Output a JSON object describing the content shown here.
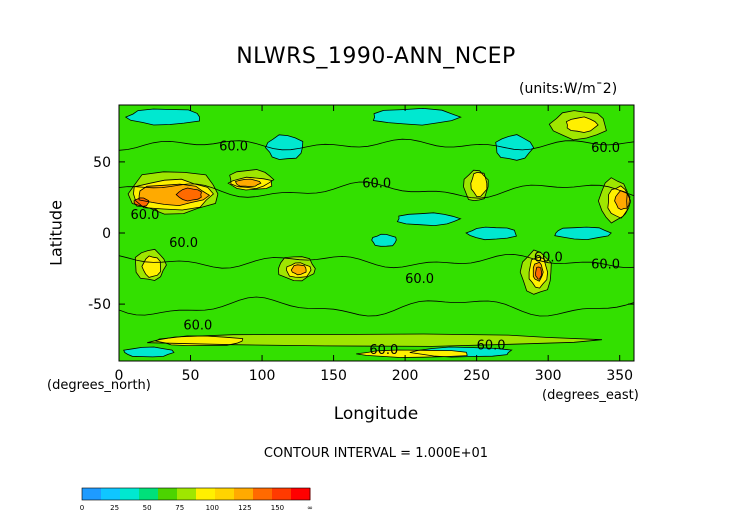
{
  "chart_data": {
    "type": "heatmap",
    "title": "NLWRS_1990-ANN_NCEP",
    "units_label": "(units:W/m¯2)",
    "xlabel": "Longitude",
    "ylabel": "Latitude",
    "x_note": "(degrees_east)",
    "y_note": "(degrees_north)",
    "contour_info": "CONTOUR INTERVAL = 1.000E+01",
    "xlim": [
      0,
      360
    ],
    "ylim": [
      -90,
      90
    ],
    "x_ticks": [
      0,
      50,
      100,
      150,
      200,
      250,
      300,
      350
    ],
    "y_ticks": [
      -50,
      0,
      50
    ],
    "contour_labels": [
      "60.0",
      "60.0",
      "60.0",
      "60.0",
      "60.0",
      "60.0",
      "60.0",
      "60.0",
      "60.0",
      "60.0",
      "60.0"
    ],
    "colorbar": {
      "levels": [
        0,
        25,
        50,
        75,
        100,
        125,
        150
      ],
      "tick_labels": [
        "0",
        "25",
        "50",
        "75",
        "100",
        "125",
        "150",
        "∞"
      ],
      "colors": [
        "#1e9bff",
        "#0fc6ff",
        "#00e8d0",
        "#00e07a",
        "#4cd400",
        "#9fe600",
        "#fff000",
        "#ffd400",
        "#ffaa00",
        "#ff6a00",
        "#ff3a00",
        "#ff0000"
      ]
    },
    "base_color": "#33e000",
    "regions": [
      {
        "level": 40,
        "color": "#00e8d0",
        "lon": [
          190,
          240
        ],
        "lat": [
          5,
          15
        ]
      },
      {
        "level": 40,
        "color": "#00e8d0",
        "lon": [
          175,
          195
        ],
        "lat": [
          -10,
          0
        ]
      },
      {
        "level": 40,
        "color": "#00e8d0",
        "lon": [
          240,
          280
        ],
        "lat": [
          -5,
          5
        ]
      },
      {
        "level": 40,
        "color": "#00e8d0",
        "lon": [
          300,
          345
        ],
        "lat": [
          -5,
          5
        ]
      },
      {
        "level": 40,
        "color": "#00e8d0",
        "lon": [
          260,
          290
        ],
        "lat": [
          50,
          70
        ]
      },
      {
        "level": 40,
        "color": "#00e8d0",
        "lon": [
          100,
          130
        ],
        "lat": [
          50,
          70
        ]
      },
      {
        "level": 40,
        "color": "#00e8d0",
        "lon": [
          0,
          60
        ],
        "lat": [
          75,
          88
        ]
      },
      {
        "level": 40,
        "color": "#00e8d0",
        "lon": [
          170,
          240
        ],
        "lat": [
          75,
          88
        ]
      },
      {
        "level": 40,
        "color": "#00e8d0",
        "lon": [
          0,
          40
        ],
        "lat": [
          -88,
          -80
        ]
      },
      {
        "level": 40,
        "color": "#00e8d0",
        "lon": [
          200,
          280
        ],
        "lat": [
          -88,
          -80
        ]
      },
      {
        "level": 80,
        "color": "#9fe600",
        "lon": [
          2,
          75
        ],
        "lat": [
          10,
          45
        ]
      },
      {
        "level": 80,
        "color": "#9fe600",
        "lon": [
          75,
          110
        ],
        "lat": [
          30,
          45
        ]
      },
      {
        "level": 80,
        "color": "#9fe600",
        "lon": [
          240,
          260
        ],
        "lat": [
          20,
          45
        ]
      },
      {
        "level": 80,
        "color": "#9fe600",
        "lon": [
          335,
          358
        ],
        "lat": [
          5,
          40
        ]
      },
      {
        "level": 80,
        "color": "#9fe600",
        "lon": [
          110,
          140
        ],
        "lat": [
          -35,
          -15
        ]
      },
      {
        "level": 80,
        "color": "#9fe600",
        "lon": [
          10,
          35
        ],
        "lat": [
          -35,
          -10
        ]
      },
      {
        "level": 80,
        "color": "#9fe600",
        "lon": [
          280,
          305
        ],
        "lat": [
          -45,
          -10
        ]
      },
      {
        "level": 80,
        "color": "#9fe600",
        "lon": [
          300,
          345
        ],
        "lat": [
          65,
          88
        ]
      },
      {
        "level": 80,
        "color": "#9fe600",
        "lon": [
          0,
          360
        ],
        "lat": [
          -80,
          -70
        ]
      },
      {
        "level": 95,
        "color": "#fff000",
        "lon": [
          5,
          70
        ],
        "lat": [
          15,
          40
        ]
      },
      {
        "level": 95,
        "color": "#fff000",
        "lon": [
          75,
          110
        ],
        "lat": [
          30,
          40
        ]
      },
      {
        "level": 95,
        "color": "#fff000",
        "lon": [
          245,
          258
        ],
        "lat": [
          25,
          45
        ]
      },
      {
        "level": 95,
        "color": "#fff000",
        "lon": [
          340,
          358
        ],
        "lat": [
          10,
          35
        ]
      },
      {
        "level": 95,
        "color": "#fff000",
        "lon": [
          115,
          135
        ],
        "lat": [
          -32,
          -20
        ]
      },
      {
        "level": 95,
        "color": "#fff000",
        "lon": [
          15,
          30
        ],
        "lat": [
          -32,
          -15
        ]
      },
      {
        "level": 95,
        "color": "#fff000",
        "lon": [
          285,
          300
        ],
        "lat": [
          -40,
          -15
        ]
      },
      {
        "level": 95,
        "color": "#fff000",
        "lon": [
          310,
          335
        ],
        "lat": [
          70,
          82
        ]
      },
      {
        "level": 95,
        "color": "#fff000",
        "lon": [
          20,
          90
        ],
        "lat": [
          -80,
          -72
        ]
      },
      {
        "level": 95,
        "color": "#fff000",
        "lon": [
          160,
          250
        ],
        "lat": [
          -88,
          -82
        ]
      },
      {
        "level": 115,
        "color": "#ffaa00",
        "lon": [
          8,
          65
        ],
        "lat": [
          18,
          35
        ]
      },
      {
        "level": 115,
        "color": "#ffaa00",
        "lon": [
          80,
          100
        ],
        "lat": [
          32,
          38
        ]
      },
      {
        "level": 115,
        "color": "#ffaa00",
        "lon": [
          346,
          358
        ],
        "lat": [
          15,
          30
        ]
      },
      {
        "level": 115,
        "color": "#ffaa00",
        "lon": [
          120,
          132
        ],
        "lat": [
          -30,
          -22
        ]
      },
      {
        "level": 115,
        "color": "#ffaa00",
        "lon": [
          289,
          297
        ],
        "lat": [
          -35,
          -20
        ]
      },
      {
        "level": 130,
        "color": "#ff6a00",
        "lon": [
          10,
          22
        ],
        "lat": [
          18,
          25
        ]
      },
      {
        "level": 130,
        "color": "#ff6a00",
        "lon": [
          40,
          60
        ],
        "lat": [
          22,
          32
        ]
      },
      {
        "level": 130,
        "color": "#ff6a00",
        "lon": [
          291,
          296
        ],
        "lat": [
          -33,
          -23
        ]
      }
    ]
  }
}
